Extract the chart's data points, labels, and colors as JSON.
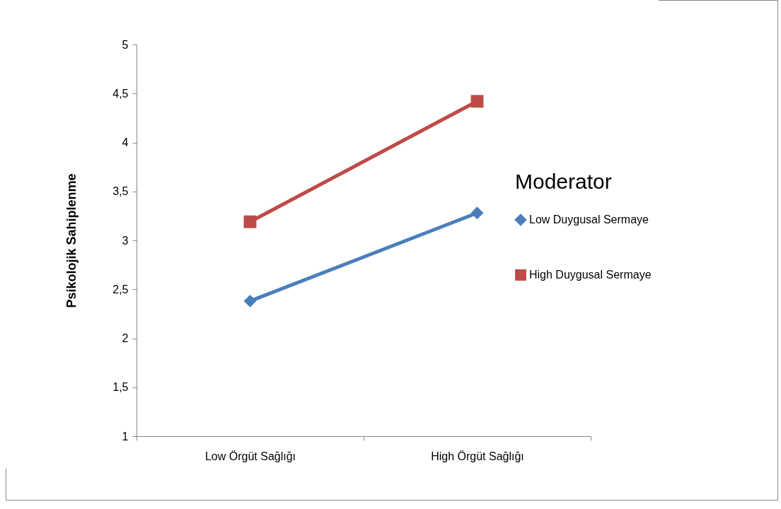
{
  "chart_data": {
    "type": "line",
    "ylabel": "Psikolojik Sahiplenme",
    "legend_title": "Moderator",
    "legend": "right",
    "categories": [
      "Low Örgüt Sağlığı",
      "High Örgüt Sağlığı"
    ],
    "series": [
      {
        "name": "Low Duygusal Sermaye",
        "color": "#4a7ebb",
        "marker": "diamond",
        "values": [
          2.38,
          3.28
        ]
      },
      {
        "name": "High Duygusal Sermaye",
        "color": "#be4b48",
        "marker": "square",
        "values": [
          3.19,
          4.42
        ]
      }
    ],
    "ylim": [
      1,
      5
    ],
    "yticks": [
      1,
      {
        "value": 1.5,
        "label": "1,5"
      },
      2,
      {
        "value": 2.5,
        "label": "2,5"
      },
      3,
      {
        "value": 3.5,
        "label": "3,5"
      },
      4,
      {
        "value": 4.5,
        "label": "4,5"
      },
      5
    ],
    "grid": false
  }
}
